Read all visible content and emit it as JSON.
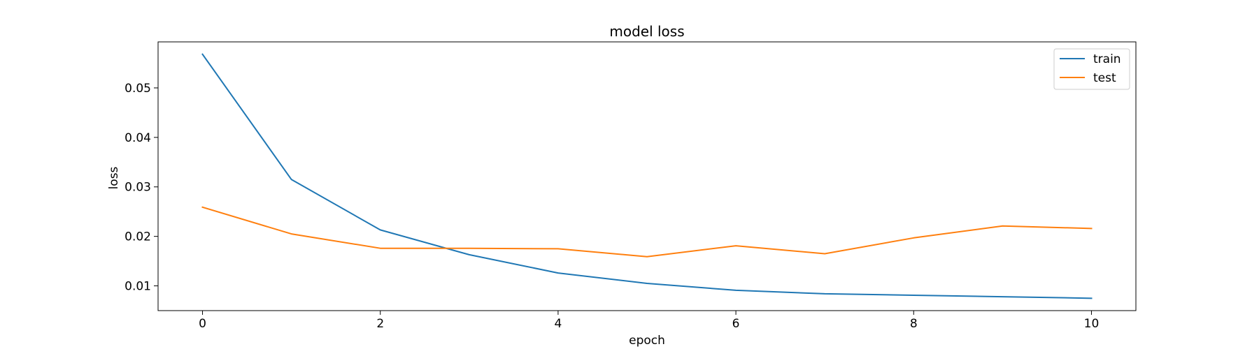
{
  "chart_data": {
    "type": "line",
    "title": "model loss",
    "xlabel": "epoch",
    "ylabel": "loss",
    "x": [
      0,
      1,
      2,
      3,
      4,
      5,
      6,
      7,
      8,
      9,
      10
    ],
    "series": [
      {
        "name": "train",
        "color": "#1f77b4",
        "values": [
          0.0568,
          0.0315,
          0.0213,
          0.0163,
          0.0126,
          0.0105,
          0.0091,
          0.0084,
          0.0081,
          0.0078,
          0.0075
        ]
      },
      {
        "name": "test",
        "color": "#ff7f0e",
        "values": [
          0.0259,
          0.0205,
          0.0176,
          0.0176,
          0.0175,
          0.0159,
          0.0181,
          0.0165,
          0.0197,
          0.0221,
          0.0216
        ]
      }
    ],
    "xticks": [
      "0",
      "2",
      "4",
      "6",
      "8",
      "10"
    ],
    "yticks": [
      "0.01",
      "0.02",
      "0.03",
      "0.04",
      "0.05"
    ],
    "xlim": [
      -0.5,
      10.5
    ],
    "ylim": [
      0.005,
      0.0593
    ],
    "grid": false,
    "legend_position": "top-right"
  }
}
